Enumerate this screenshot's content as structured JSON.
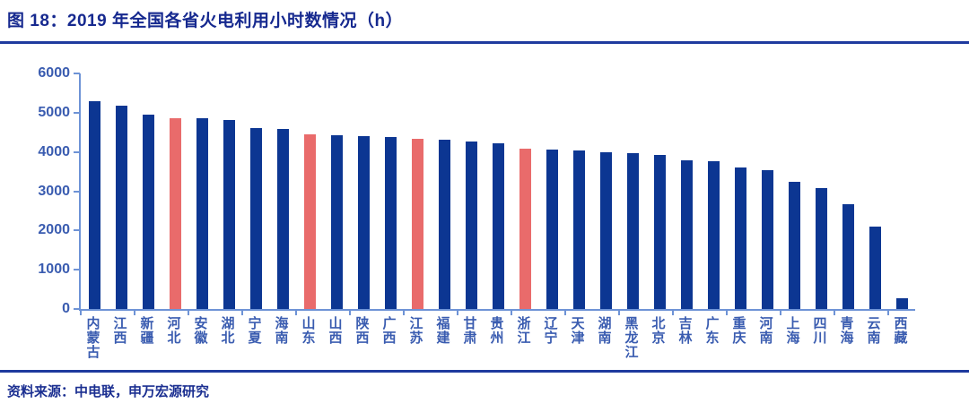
{
  "figure": {
    "source": "资料来源：中电联，申万宏源研究"
  },
  "chart_data": {
    "type": "bar",
    "title": "图 18：2019 年全国各省火电利用小时数情况（h）",
    "categories": [
      "内蒙古",
      "江西",
      "新疆",
      "河北",
      "安徽",
      "湖北",
      "宁夏",
      "海南",
      "山东",
      "山西",
      "陕西",
      "广西",
      "江苏",
      "福建",
      "甘肃",
      "贵州",
      "浙江",
      "辽宁",
      "天津",
      "湖南",
      "黑龙江",
      "北京",
      "吉林",
      "广东",
      "重庆",
      "河南",
      "上海",
      "四川",
      "青海",
      "云南",
      "西藏"
    ],
    "values": [
      5290,
      5170,
      4960,
      4870,
      4850,
      4810,
      4620,
      4590,
      4450,
      4430,
      4400,
      4370,
      4340,
      4310,
      4270,
      4220,
      4080,
      4070,
      4030,
      3990,
      3970,
      3930,
      3790,
      3770,
      3600,
      3540,
      3250,
      3090,
      2660,
      2110,
      270
    ],
    "highlighted_categories": [
      "河北",
      "山东",
      "江苏",
      "浙江"
    ],
    "ylim": [
      0,
      6000
    ],
    "yticks": [
      0,
      1000,
      2000,
      3000,
      4000,
      5000,
      6000
    ],
    "xlabel": "",
    "ylabel": "",
    "grid": false,
    "legend": "none",
    "colors": {
      "bar": "#0c3692",
      "highlight": "#e96b6b",
      "axis": "#6e93d6",
      "axis_label": "#3a5cb0",
      "title": "#16298f",
      "rule": "#1e3a9e",
      "source_text": "#1b2f91"
    }
  }
}
